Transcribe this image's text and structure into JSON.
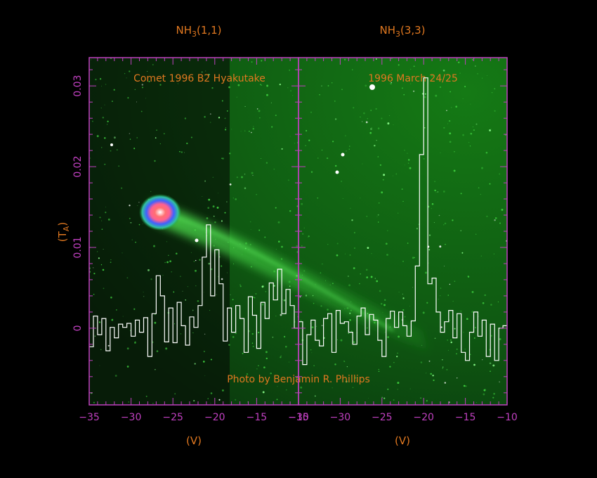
{
  "colors": {
    "frame": "#c040c0",
    "label_text": "#e07820",
    "trace": "#ffffff",
    "background": "#000000",
    "comet_green": "#2ecc40"
  },
  "photo": {
    "title_left": "Comet 1996 B2 Hyakutake",
    "title_right": "1996 March 24/25",
    "credit": "Photo by Benjamin R. Phillips"
  },
  "chart_data": [
    {
      "type": "line",
      "step": true,
      "panel": "left",
      "title": "NH3(1,1)",
      "title_main": "NH",
      "title_sub": "3",
      "title_tail": "(1,1)",
      "xlabel": "(V)",
      "ylabel": "(T",
      "ylabel_sub": "A",
      "ylabel_tail": ")",
      "xlim": [
        -35,
        -10
      ],
      "ylim": [
        -0.0095,
        0.0335
      ],
      "xticks": [
        -35,
        -30,
        -25,
        -20,
        -15,
        -10
      ],
      "xtick_labels": [
        "−35",
        "−30",
        "−25",
        "−20",
        "−15",
        "−10"
      ],
      "yticks": [
        0,
        0.01,
        0.02,
        0.03
      ],
      "ytick_labels": [
        "0",
        "0.01",
        "0.02",
        "0.03"
      ],
      "x": [
        -35.0,
        -34.5,
        -34.0,
        -33.5,
        -33.0,
        -32.5,
        -32.0,
        -31.5,
        -31.0,
        -30.5,
        -30.0,
        -29.5,
        -29.0,
        -28.5,
        -28.0,
        -27.5,
        -27.0,
        -26.5,
        -26.0,
        -25.5,
        -25.0,
        -24.5,
        -24.0,
        -23.5,
        -23.0,
        -22.5,
        -22.0,
        -21.5,
        -21.0,
        -20.5,
        -20.0,
        -19.5,
        -19.0,
        -18.5,
        -18.0,
        -17.5,
        -17.0,
        -16.5,
        -16.0,
        -15.5,
        -15.0,
        -14.5,
        -14.0,
        -13.5,
        -13.0,
        -12.5,
        -12.0,
        -11.5,
        -11.0,
        -10.5
      ],
      "values": [
        -0.0023,
        0.0015,
        -0.0008,
        0.0012,
        -0.0028,
        0.0001,
        -0.0012,
        0.0005,
        0.0001,
        0.0006,
        -0.001,
        0.001,
        -0.0005,
        0.0013,
        -0.0035,
        0.0018,
        0.0065,
        0.004,
        -0.0017,
        0.0025,
        -0.0018,
        0.0032,
        0.0003,
        -0.0021,
        0.0014,
        0.0001,
        0.0028,
        0.0088,
        0.0128,
        0.004,
        0.0097,
        0.0055,
        -0.0016,
        0.0025,
        -0.0005,
        0.0028,
        0.0012,
        -0.003,
        0.0039,
        0.0016,
        -0.0025,
        0.0032,
        0.0012,
        0.0056,
        0.0035,
        0.0073,
        0.0018,
        0.0048,
        0.0028,
        0.0
      ]
    },
    {
      "type": "line",
      "step": true,
      "panel": "right",
      "title": "NH3(3,3)",
      "title_main": "NH",
      "title_sub": "3",
      "title_tail": "(3,3)",
      "xlabel": "(V)",
      "xlim": [
        -35,
        -10
      ],
      "ylim": [
        -0.0095,
        0.0335
      ],
      "xticks": [
        -35,
        -30,
        -25,
        -20,
        -15,
        -10
      ],
      "xtick_labels": [
        "−35",
        "−30",
        "−25",
        "−20",
        "−15",
        "−10"
      ],
      "x": [
        -35.0,
        -34.5,
        -34.0,
        -33.5,
        -33.0,
        -32.5,
        -32.0,
        -31.5,
        -31.0,
        -30.5,
        -30.0,
        -29.5,
        -29.0,
        -28.5,
        -28.0,
        -27.5,
        -27.0,
        -26.5,
        -26.0,
        -25.5,
        -25.0,
        -24.5,
        -24.0,
        -23.5,
        -23.0,
        -22.5,
        -22.0,
        -21.5,
        -21.0,
        -20.5,
        -20.0,
        -19.5,
        -19.0,
        -18.5,
        -18.0,
        -17.5,
        -17.0,
        -16.5,
        -16.0,
        -15.5,
        -15.0,
        -14.5,
        -14.0,
        -13.5,
        -13.0,
        -12.5,
        -12.0,
        -11.5,
        -11.0,
        -10.5
      ],
      "values": [
        0.0008,
        -0.0045,
        -0.0008,
        0.001,
        -0.0015,
        -0.0022,
        0.0012,
        0.0018,
        -0.003,
        0.0022,
        0.0006,
        0.0008,
        -0.0005,
        -0.002,
        0.0015,
        0.0025,
        -0.0008,
        0.0017,
        0.001,
        -0.0015,
        -0.0035,
        0.0012,
        0.0021,
        0.0001,
        0.002,
        0.0003,
        -0.001,
        0.0009,
        0.0077,
        0.0215,
        0.031,
        0.0055,
        0.0062,
        0.002,
        -0.0005,
        0.0008,
        0.0022,
        -0.0012,
        0.0018,
        -0.003,
        -0.004,
        -0.0005,
        0.002,
        -0.001,
        0.001,
        -0.0035,
        0.0005,
        -0.004,
        0.0,
        0.0003
      ]
    }
  ]
}
